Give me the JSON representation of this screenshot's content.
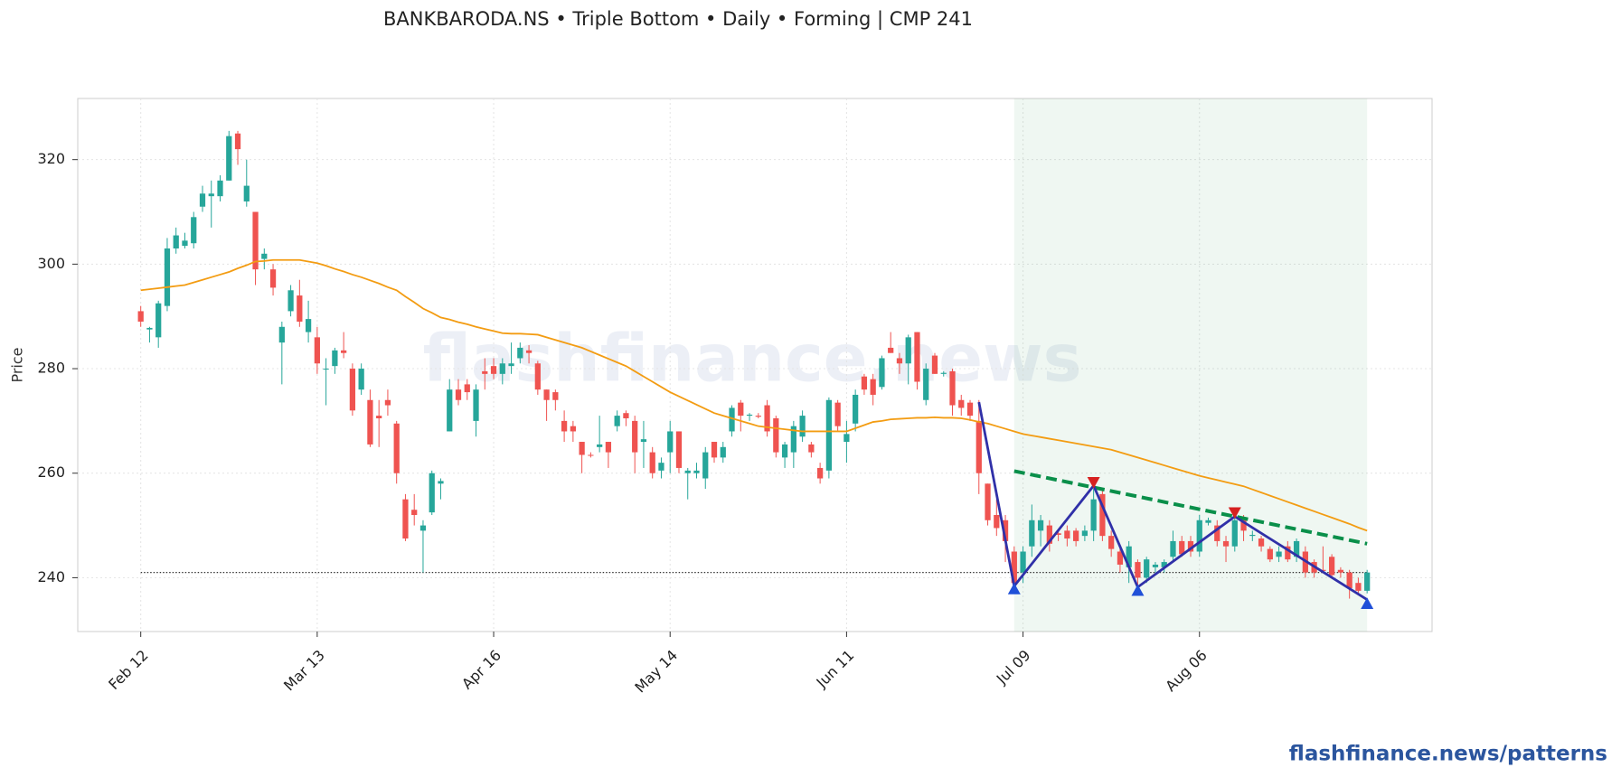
{
  "chart_data": {
    "type": "candlestick",
    "title": "BANKBARODA.NS  •  Triple Bottom  •  Daily  •  Forming  |  CMP 241",
    "y_label": "Price",
    "watermark": "flashfinance.news",
    "footer": "flashfinance.news/patterns",
    "categories": [
      "Feb 12",
      null,
      null,
      null,
      null,
      null,
      null,
      null,
      null,
      null,
      null,
      null,
      null,
      null,
      null,
      null,
      null,
      null,
      null,
      null,
      "Mar 13",
      null,
      null,
      null,
      null,
      null,
      null,
      null,
      null,
      null,
      null,
      null,
      null,
      null,
      null,
      null,
      null,
      null,
      null,
      null,
      "Apr 16",
      null,
      null,
      null,
      null,
      null,
      null,
      null,
      null,
      null,
      null,
      null,
      null,
      null,
      null,
      null,
      null,
      null,
      null,
      null,
      "May 14",
      null,
      null,
      null,
      null,
      null,
      null,
      null,
      null,
      null,
      null,
      null,
      null,
      null,
      null,
      null,
      null,
      null,
      null,
      null,
      "Jun 11",
      null,
      null,
      null,
      null,
      null,
      null,
      null,
      null,
      null,
      null,
      null,
      null,
      null,
      null,
      null,
      null,
      null,
      null,
      null,
      "Jul 09",
      null,
      null,
      null,
      null,
      null,
      null,
      null,
      null,
      null,
      null,
      null,
      null,
      null,
      null,
      null,
      null,
      null,
      null,
      null,
      "Aug 06",
      null,
      null,
      null,
      null,
      null,
      null,
      null,
      null,
      null,
      null,
      null,
      null,
      null,
      null,
      null,
      null,
      null,
      null,
      null
    ],
    "open": [
      291,
      287.5,
      286,
      292,
      303,
      303.5,
      304,
      311,
      313,
      313,
      316,
      325,
      312,
      310,
      301,
      299,
      285,
      291,
      294,
      287,
      286,
      280,
      280.5,
      283.5,
      280,
      276,
      274,
      271,
      274,
      269.5,
      255,
      253,
      249,
      252.5,
      258,
      268,
      276,
      277,
      270,
      279.5,
      280.5,
      279,
      280.5,
      282,
      283.5,
      281,
      276,
      275.5,
      270,
      269,
      266,
      263.5,
      265,
      266,
      269,
      271.5,
      270,
      266,
      264,
      260.5,
      264,
      268,
      260,
      260,
      259,
      266,
      263,
      268,
      273.5,
      271,
      271,
      273,
      270.5,
      263,
      264,
      267,
      265.5,
      261,
      260.5,
      273.5,
      266,
      269.5,
      278.5,
      278,
      276.5,
      284,
      282,
      281,
      287,
      274,
      282.5,
      279,
      279.5,
      274,
      273.5,
      270,
      258,
      252,
      251,
      245,
      241,
      246,
      249,
      250,
      248.5,
      249,
      249,
      248,
      249,
      256,
      248,
      245,
      242,
      243,
      240,
      242,
      242,
      244,
      247,
      247,
      245,
      250.5,
      250,
      247,
      246,
      251,
      248,
      247.5,
      245.5,
      244,
      246,
      244,
      245,
      243,
      241.5,
      244,
      241.5,
      241,
      239,
      237.5
    ],
    "high": [
      292,
      288,
      293,
      305,
      307,
      306,
      310,
      315,
      316,
      317,
      325.5,
      325.5,
      320,
      310,
      303,
      300,
      289,
      296,
      297,
      293,
      288,
      282,
      284,
      287,
      281,
      281,
      276,
      274,
      276,
      270,
      256,
      256,
      251,
      260.5,
      259,
      278,
      278,
      278,
      277,
      282,
      282,
      282,
      285,
      285,
      284.5,
      281.5,
      276,
      276,
      272,
      270,
      266,
      264,
      271,
      266,
      272,
      272,
      271,
      270,
      265,
      263,
      270,
      268,
      261,
      262,
      265,
      266,
      266,
      273,
      274,
      271.5,
      271.5,
      274,
      271,
      266,
      270,
      272,
      266,
      262,
      274.5,
      274,
      270,
      276,
      279,
      279,
      282.5,
      287,
      283,
      286.5,
      287,
      281,
      283,
      279.5,
      280,
      275,
      274,
      274,
      258,
      255,
      252,
      246,
      246,
      254,
      252,
      251,
      249,
      250,
      249.5,
      250,
      257,
      257,
      249,
      246,
      247,
      243.5,
      244,
      243,
      243.5,
      249,
      248,
      248,
      252,
      251.5,
      251,
      248,
      252,
      252,
      249,
      248,
      246,
      246,
      247,
      247.5,
      246,
      243.5,
      246,
      244.5,
      242,
      241.5,
      240,
      241.5
    ],
    "low": [
      288,
      285,
      284,
      291,
      302,
      303,
      303,
      310,
      307,
      312,
      316,
      319,
      311,
      296,
      299,
      294,
      277,
      290,
      288,
      285,
      279,
      273,
      279,
      282,
      271,
      275,
      265,
      265,
      271,
      258,
      247,
      250,
      241,
      252,
      255,
      268,
      273,
      274,
      267,
      276,
      278,
      277,
      279,
      281,
      281,
      275,
      270,
      272,
      266,
      266,
      260,
      263,
      264,
      261,
      268,
      269,
      260,
      261,
      259,
      259,
      260,
      260,
      255,
      259,
      257,
      262,
      262,
      267,
      268,
      270,
      270.5,
      267,
      263,
      261,
      261,
      266,
      263,
      258,
      259,
      268,
      262,
      268,
      275,
      273,
      276,
      283,
      279,
      277,
      276,
      273,
      279,
      278.5,
      271,
      271,
      270,
      256,
      250,
      248,
      243,
      238,
      239,
      244,
      246,
      245,
      247,
      246,
      246,
      247,
      247,
      247,
      244,
      241,
      239,
      238,
      239,
      241,
      241,
      243,
      244,
      244,
      244,
      250,
      246,
      243,
      245,
      247,
      247,
      245,
      243,
      243,
      243,
      243,
      240,
      240,
      241,
      240,
      240,
      236,
      237,
      237
    ],
    "close": [
      289,
      287.8,
      292.5,
      303,
      305.5,
      304.5,
      309,
      313.5,
      313.5,
      316,
      324.5,
      322,
      315,
      299,
      302,
      295.5,
      288,
      295,
      289,
      289.5,
      281,
      280,
      283.5,
      283,
      272,
      280,
      265.5,
      270.5,
      273,
      260,
      247.5,
      252,
      250,
      260,
      258.5,
      276,
      274,
      275.5,
      276,
      279,
      279,
      281,
      281,
      284,
      283,
      276,
      274,
      274,
      268,
      268,
      263.5,
      263.4,
      265.5,
      264,
      271,
      270.5,
      264,
      266.5,
      260,
      262,
      268,
      261,
      260.5,
      260.5,
      264,
      263,
      265,
      272.5,
      271,
      271.2,
      270.8,
      268,
      264,
      265.5,
      269,
      271,
      264,
      259,
      274,
      269,
      267.5,
      275,
      276,
      275,
      282,
      283,
      281,
      286,
      277.5,
      280,
      279,
      279.2,
      273,
      272.5,
      271,
      260,
      251,
      249.5,
      247,
      239,
      245,
      251,
      251,
      246.5,
      248.2,
      247.5,
      247,
      249,
      255,
      248,
      245.5,
      242.5,
      246,
      240,
      243.5,
      242.5,
      243,
      247,
      244.5,
      245,
      251,
      251,
      247,
      246,
      251,
      249,
      248.2,
      246,
      243.5,
      245,
      243.5,
      247,
      241,
      241,
      241.3,
      240.5,
      241,
      238,
      237.5,
      241
    ],
    "up_color": "#26a69a",
    "down_color": "#ef5350",
    "sma": {
      "color": "#f39c12",
      "values": [
        295,
        295.2,
        295.4,
        295.6,
        295.8,
        296,
        296.5,
        297,
        297.5,
        298,
        298.5,
        299.2,
        299.8,
        300.5,
        300.6,
        300.8,
        300.8,
        300.8,
        300.8,
        300.5,
        300.2,
        299.7,
        299.1,
        298.6,
        298,
        297.5,
        296.9,
        296.3,
        295.6,
        295,
        293.8,
        292.7,
        291.5,
        290.7,
        289.8,
        289.4,
        288.9,
        288.5,
        288,
        287.6,
        287.2,
        286.8,
        286.7,
        286.7,
        286.6,
        286.5,
        286,
        285.5,
        285,
        284.5,
        284,
        283.3,
        282.6,
        281.9,
        281.2,
        280.5,
        279.5,
        278.5,
        277.5,
        276.5,
        275.5,
        274.7,
        273.9,
        273.1,
        272.3,
        271.5,
        271,
        270.5,
        270,
        269.5,
        269,
        268.8,
        268.6,
        268.4,
        268.2,
        268,
        268,
        268,
        268,
        268,
        268,
        268.6,
        269.2,
        269.8,
        270,
        270.3,
        270.4,
        270.5,
        270.6,
        270.6,
        270.7,
        270.6,
        270.6,
        270.5,
        270.2,
        269.8,
        269.5,
        269,
        268.5,
        268,
        267.5,
        267.2,
        266.9,
        266.6,
        266.3,
        266,
        265.7,
        265.4,
        265.1,
        264.8,
        264.5,
        264,
        263.5,
        263,
        262.5,
        262,
        261.5,
        261,
        260.5,
        260,
        259.5,
        259.1,
        258.7,
        258.3,
        257.9,
        257.5,
        256.9,
        256.3,
        255.7,
        255.1,
        254.5,
        253.9,
        253.3,
        252.7,
        252.1,
        251.5,
        250.9,
        250.3,
        249.6,
        249
      ]
    },
    "level": 241,
    "zone": [
      99,
      139
    ],
    "pattern": {
      "color": "#3030a8",
      "at": [
        95,
        99,
        108,
        113,
        124,
        139
      ],
      "values": [
        273.6,
        238.4,
        257.6,
        238.2,
        251.7,
        235.8
      ]
    },
    "peaks": {
      "color": "#d62020",
      "at": [
        108,
        124
      ],
      "values": [
        258.3,
        252.5
      ]
    },
    "troughs": {
      "color": "#2050d8",
      "at": [
        99,
        113,
        139
      ],
      "values": [
        237.8,
        237.5,
        235
      ]
    },
    "resistance": {
      "color": "#0a8f4a",
      "at": [
        99,
        139
      ],
      "values": [
        260.4,
        246.5
      ]
    },
    "ylim": [
      229.7,
      331.7
    ],
    "yticks": [
      240,
      260,
      280,
      300,
      320
    ],
    "grid": true
  }
}
